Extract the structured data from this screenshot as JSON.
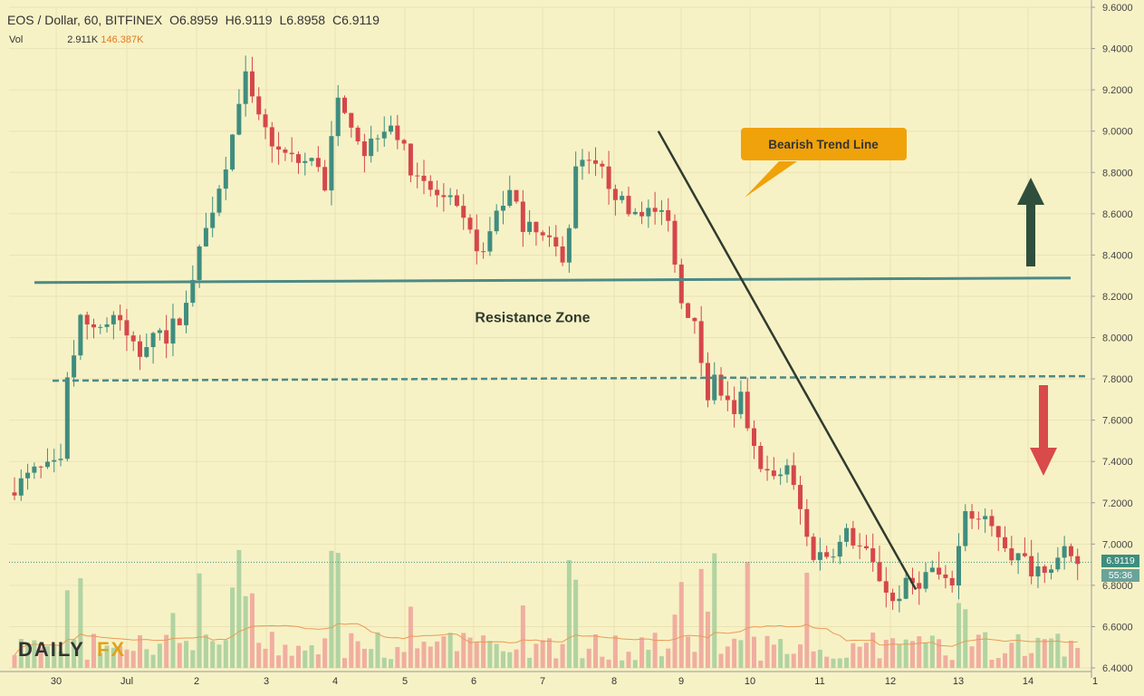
{
  "header": {
    "symbol": "EOS / Dollar, 60, BITFINEX",
    "open": "O6.8959",
    "high": "H6.9119",
    "low": "L6.8958",
    "close": "C6.9119",
    "vol_label": "Vol",
    "vol_value": "2.911K",
    "vol_ma": "146.387K"
  },
  "price_tag": {
    "value": "6.9119",
    "countdown": "55:36"
  },
  "branding": {
    "logo": "DAILYFX"
  },
  "colors": {
    "bg": "#f7f2c6",
    "up": "#3f8d7f",
    "down": "#d5474b",
    "callout": "#f0a20a",
    "trend": "#2f3b2e",
    "zone": "#4c8a86"
  },
  "chart_data": {
    "type": "candlestick",
    "ylim": [
      6.4,
      9.6
    ],
    "y_ticks": [
      "9.6000",
      "9.4000",
      "9.2000",
      "9.0000",
      "8.8000",
      "8.6000",
      "8.4000",
      "8.2000",
      "8.0000",
      "7.8000",
      "7.6000",
      "7.4000",
      "7.2000",
      "7.0000",
      "6.8000",
      "6.6000",
      "6.4000"
    ],
    "x_ticks": [
      "30",
      "Jul",
      "2",
      "3",
      "4",
      "5",
      "6",
      "7",
      "8",
      "9",
      "10",
      "11",
      "12",
      "13",
      "14",
      "1"
    ],
    "price_path": [
      [
        0,
        7.25
      ],
      [
        4,
        7.35
      ],
      [
        8,
        7.38
      ],
      [
        9,
        7.78
      ],
      [
        11,
        8.08
      ],
      [
        14,
        8.05
      ],
      [
        16,
        8.1
      ],
      [
        20,
        7.92
      ],
      [
        22,
        8.05
      ],
      [
        24,
        8.0
      ],
      [
        24.4,
        8.05
      ],
      [
        26,
        8.08
      ],
      [
        28,
        8.3
      ],
      [
        33,
        8.85
      ],
      [
        36,
        9.25
      ],
      [
        38,
        9.05
      ],
      [
        41,
        8.9
      ],
      [
        44,
        8.85
      ],
      [
        46,
        8.85
      ],
      [
        47,
        8.85
      ],
      [
        48,
        8.7
      ],
      [
        50,
        9.2
      ],
      [
        54,
        8.9
      ],
      [
        56,
        9.0
      ],
      [
        58,
        9.05
      ],
      [
        62,
        8.75
      ],
      [
        67,
        8.65
      ],
      [
        69,
        8.55
      ],
      [
        72,
        8.4
      ],
      [
        74,
        8.62
      ],
      [
        76,
        8.7
      ],
      [
        78,
        8.55
      ],
      [
        82,
        8.45
      ],
      [
        84,
        8.4
      ],
      [
        85,
        8.55
      ],
      [
        86,
        8.85
      ],
      [
        90,
        8.8
      ],
      [
        92,
        8.7
      ],
      [
        94,
        8.6
      ],
      [
        96,
        8.62
      ],
      [
        98,
        8.6
      ],
      [
        100,
        8.6
      ],
      [
        101,
        8.35
      ],
      [
        102,
        8.2
      ],
      [
        104,
        8.05
      ],
      [
        106,
        7.72
      ],
      [
        107,
        7.8
      ],
      [
        110,
        7.6
      ],
      [
        111,
        7.7
      ],
      [
        113,
        7.45
      ],
      [
        116,
        7.3
      ],
      [
        118,
        7.38
      ],
      [
        121,
        7.05
      ],
      [
        122,
        6.95
      ],
      [
        124,
        6.95
      ],
      [
        126,
        7.0
      ],
      [
        127,
        7.05
      ],
      [
        130,
        6.95
      ],
      [
        133,
        6.78
      ],
      [
        134,
        6.72
      ],
      [
        136,
        6.8
      ],
      [
        138,
        6.82
      ],
      [
        140,
        6.88
      ],
      [
        142,
        6.8
      ],
      [
        143,
        6.82
      ],
      [
        145,
        7.15
      ],
      [
        148,
        7.1
      ],
      [
        150,
        7.05
      ],
      [
        152,
        6.95
      ],
      [
        154,
        6.92
      ],
      [
        155,
        6.88
      ],
      [
        157,
        6.9
      ],
      [
        159,
        6.92
      ],
      [
        160,
        6.95
      ],
      [
        161,
        6.91
      ]
    ],
    "volume_range": [
      0,
      250
    ],
    "resistance_zone": {
      "upper": 8.28,
      "lower": 7.8,
      "label": "Resistance Zone"
    },
    "trend_line": {
      "from_bar": 97.5,
      "from_price": 9.0,
      "to_bar": 136.5,
      "to_price": 6.78,
      "label": "Bearish Trend Line"
    },
    "last_price": 6.9119,
    "annotations": [
      "Resistance Zone",
      "Bearish Trend Line"
    ],
    "arrows": [
      {
        "direction": "up",
        "color": "#2f4f3c"
      },
      {
        "direction": "down",
        "color": "#d94a4a"
      }
    ]
  }
}
